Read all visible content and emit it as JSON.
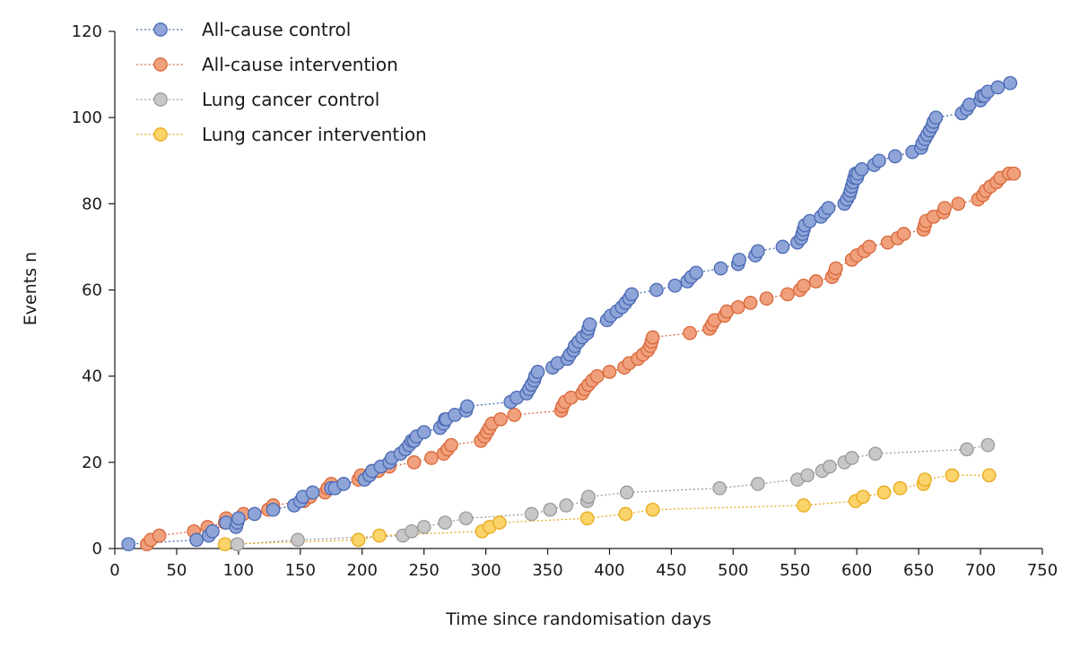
{
  "chart_data": {
    "type": "scatter",
    "xlabel": "Time since randomisation days",
    "ylabel": "Events n",
    "xlim": [
      0,
      750
    ],
    "ylim": [
      0,
      120
    ],
    "xticks": [
      0,
      50,
      100,
      150,
      200,
      250,
      300,
      350,
      400,
      450,
      500,
      550,
      600,
      650,
      700,
      750
    ],
    "yticks": [
      0,
      20,
      40,
      60,
      80,
      100,
      120
    ],
    "grid": false,
    "legend_position": "top-left",
    "series": [
      {
        "name": "All-cause control",
        "color": "#8fa5d8",
        "edge_color": "#4a69b4",
        "x": [
          11,
          66,
          76,
          79,
          90,
          98,
          99,
          100,
          113,
          128,
          145,
          150,
          152,
          160,
          175,
          178,
          185,
          202,
          206,
          208,
          215,
          222,
          224,
          231,
          235,
          238,
          240,
          242,
          244,
          250,
          263,
          266,
          267,
          268,
          275,
          284,
          285,
          320,
          325,
          333,
          335,
          337,
          339,
          340,
          342,
          354,
          358,
          366,
          368,
          371,
          372,
          375,
          378,
          382,
          383,
          384,
          398,
          401,
          406,
          410,
          413,
          416,
          418,
          438,
          453,
          463,
          466,
          470,
          490,
          504,
          505,
          518,
          520,
          540,
          552,
          555,
          556,
          557,
          558,
          562,
          571,
          574,
          577,
          590,
          592,
          594,
          595,
          596,
          597,
          598,
          599,
          600,
          601,
          604,
          614,
          618,
          631,
          645,
          652,
          653,
          655,
          657,
          659,
          661,
          662,
          664,
          685,
          689,
          691,
          700,
          701,
          703,
          706,
          714,
          724
        ],
        "y": [
          1,
          2,
          3,
          4,
          6,
          5,
          6,
          7,
          8,
          9,
          10,
          11,
          12,
          13,
          14,
          14,
          15,
          16,
          17,
          18,
          19,
          20,
          21,
          22,
          23,
          24,
          25,
          25,
          26,
          27,
          28,
          29,
          30,
          30,
          31,
          32,
          33,
          34,
          35,
          36,
          37,
          38,
          39,
          40,
          41,
          42,
          43,
          44,
          45,
          46,
          47,
          48,
          49,
          50,
          51,
          52,
          53,
          54,
          55,
          56,
          57,
          58,
          59,
          60,
          61,
          62,
          63,
          64,
          65,
          66,
          67,
          68,
          69,
          70,
          71,
          72,
          73,
          74,
          75,
          76,
          77,
          78,
          79,
          80,
          81,
          82,
          83,
          84,
          85,
          86,
          87,
          86,
          87,
          88,
          89,
          90,
          91,
          92,
          93,
          94,
          95,
          96,
          97,
          98,
          99,
          100,
          101,
          102,
          103,
          104,
          105,
          105,
          106,
          107,
          108
        ]
      },
      {
        "name": "All-cause intervention",
        "color": "#f0a07c",
        "edge_color": "#d9683a",
        "x": [
          26,
          29,
          36,
          64,
          75,
          89,
          90,
          104,
          124,
          128,
          153,
          158,
          170,
          172,
          175,
          197,
          199,
          208,
          213,
          222,
          242,
          256,
          266,
          269,
          272,
          296,
          299,
          301,
          303,
          305,
          312,
          323,
          361,
          362,
          364,
          369,
          378,
          380,
          383,
          386,
          390,
          400,
          412,
          416,
          423,
          427,
          431,
          433,
          434,
          435,
          465,
          481,
          483,
          485,
          493,
          495,
          504,
          514,
          527,
          544,
          554,
          557,
          567,
          580,
          582,
          583,
          596,
          600,
          606,
          610,
          625,
          633,
          638,
          654,
          655,
          656,
          662,
          670,
          671,
          682,
          698,
          702,
          704,
          708,
          713,
          716,
          723,
          727
        ],
        "y": [
          1,
          2,
          3,
          4,
          5,
          6,
          7,
          8,
          9,
          10,
          11,
          12,
          13,
          14,
          15,
          16,
          17,
          18,
          18,
          19,
          20,
          21,
          22,
          23,
          24,
          25,
          26,
          27,
          28,
          29,
          30,
          31,
          32,
          33,
          34,
          35,
          36,
          37,
          38,
          39,
          40,
          41,
          42,
          43,
          44,
          45,
          46,
          47,
          48,
          49,
          50,
          51,
          52,
          53,
          54,
          55,
          56,
          57,
          58,
          59,
          60,
          61,
          62,
          63,
          64,
          65,
          67,
          68,
          69,
          70,
          71,
          72,
          73,
          74,
          75,
          76,
          77,
          78,
          79,
          80,
          81,
          82,
          83,
          84,
          85,
          86,
          87,
          87
        ]
      },
      {
        "name": "Lung cancer control",
        "color": "#c7c7c7",
        "edge_color": "#9a9a9a",
        "x": [
          99,
          148,
          233,
          240,
          250,
          267,
          284,
          337,
          352,
          365,
          382,
          383,
          414,
          489,
          520,
          552,
          560,
          572,
          578,
          590,
          596,
          615,
          689,
          706
        ],
        "y": [
          1,
          2,
          3,
          4,
          5,
          6,
          7,
          8,
          9,
          10,
          11,
          12,
          13,
          14,
          15,
          16,
          17,
          18,
          19,
          20,
          21,
          22,
          23,
          24
        ],
        "extra_note": ""
      },
      {
        "name": "Lung cancer intervention",
        "color": "#fbd36b",
        "edge_color": "#e8a91a",
        "x": [
          89,
          197,
          214,
          297,
          303,
          311,
          382,
          413,
          435,
          557,
          599,
          605,
          622,
          635,
          654,
          655,
          677,
          707
        ],
        "y": [
          1,
          2,
          3,
          4,
          5,
          6,
          7,
          8,
          9,
          10,
          11,
          12,
          13,
          14,
          15,
          16,
          17,
          17
        ]
      }
    ]
  }
}
